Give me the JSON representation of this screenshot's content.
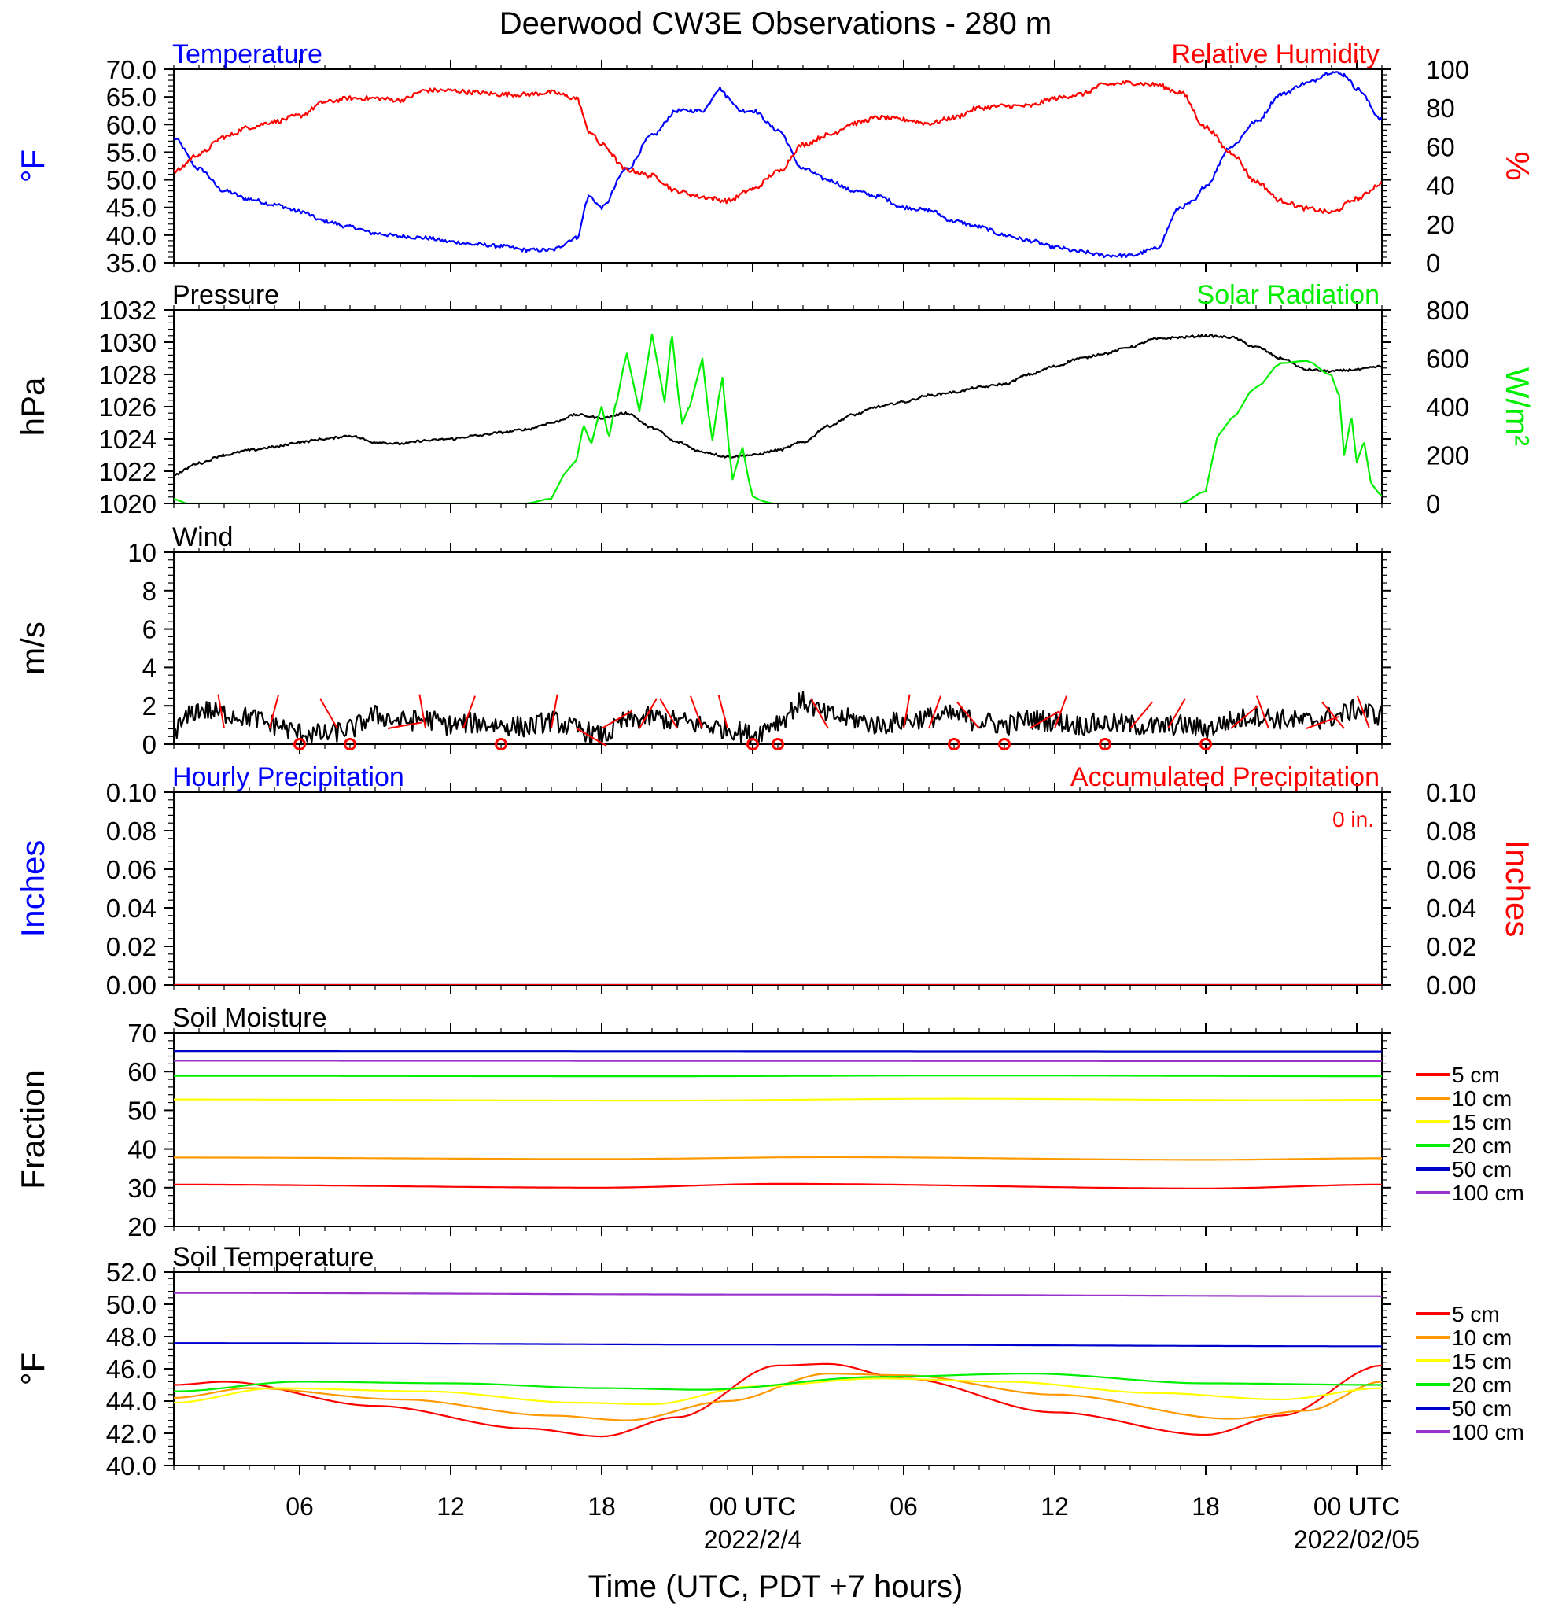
{
  "title": "Deerwood CW3E Observations - 280 m",
  "xaxis": {
    "label": "Time (UTC, PDT +7 hours)",
    "ticks": [
      "06",
      "12",
      "18",
      "00 UTC",
      "06",
      "12",
      "18",
      "00 UTC"
    ],
    "tick_hours": [
      6,
      12,
      18,
      24,
      30,
      36,
      42,
      48
    ],
    "dates": [
      "2022/2/4",
      "2022/02/05"
    ],
    "date_hours": [
      24,
      48
    ],
    "range_hours": [
      1,
      49
    ]
  },
  "colors": {
    "temperature": "#0000ff",
    "humidity": "#ff0000",
    "pressure": "#000000",
    "solar": "#00ee00",
    "wind": "#000000",
    "barb": "#ff0000",
    "precip_left": "#0000ff",
    "precip_right": "#ff0000",
    "depth_5cm": "#ff0000",
    "depth_10cm": "#ff9900",
    "depth_15cm": "#ffff00",
    "depth_20cm": "#00ee00",
    "depth_50cm": "#0000cc",
    "depth_100cm": "#9933cc"
  },
  "chart_data": [
    {
      "type": "line",
      "panel": "temp_rh",
      "title_left": "Temperature",
      "title_right": "Relative Humidity",
      "ylabel_left": "°F",
      "ylabel_right": "%",
      "ylim_left": [
        35,
        70
      ],
      "yticks_left": [
        "35.0",
        "40.0",
        "45.0",
        "50.0",
        "55.0",
        "60.0",
        "65.0",
        "70.0"
      ],
      "ylim_right": [
        0,
        100
      ],
      "yticks_right": [
        "0",
        "20",
        "40",
        "60",
        "80",
        "100"
      ],
      "series": [
        {
          "name": "Temperature",
          "axis": "left",
          "x": [
            1,
            2,
            3,
            4,
            5,
            6,
            7,
            8,
            9,
            10,
            11,
            12,
            13,
            14,
            15,
            16,
            17,
            17.5,
            18,
            19,
            20,
            21,
            22,
            22.7,
            23,
            23.5,
            24,
            25,
            26,
            27,
            28,
            29,
            30,
            31,
            32,
            33,
            34,
            35,
            36,
            37,
            38,
            39,
            40,
            41,
            41.5,
            42,
            43,
            44,
            45,
            46,
            47,
            47.5,
            48,
            49
          ],
          "values": [
            57.5,
            52,
            48,
            46.5,
            45.5,
            44.3,
            42.5,
            41.5,
            40.3,
            39.8,
            39.5,
            38.8,
            38.3,
            38,
            37.3,
            37.3,
            39.5,
            47,
            45,
            52,
            58,
            62.5,
            62.5,
            66.5,
            65,
            62.5,
            62.5,
            59,
            52,
            50,
            48,
            47,
            45,
            44.5,
            42.5,
            41.5,
            40,
            39,
            37.8,
            37,
            36.3,
            36.3,
            37.5,
            45,
            46,
            49,
            56,
            60.5,
            65.5,
            67.5,
            69.5,
            69,
            66.5,
            61
          ]
        },
        {
          "name": "Relative Humidity",
          "axis": "right",
          "x": [
            1,
            2,
            3,
            4,
            5,
            6,
            7,
            8,
            9,
            10,
            11,
            12,
            13,
            14,
            15,
            16,
            17,
            17.5,
            18,
            19,
            20,
            21,
            22,
            23,
            24,
            25,
            26,
            27,
            28,
            29,
            30,
            31,
            32,
            33,
            34,
            35,
            36,
            37,
            38,
            39,
            40,
            41,
            42,
            43,
            44,
            45,
            46,
            47,
            48,
            49
          ],
          "values": [
            47,
            56,
            65,
            70,
            73,
            76,
            83,
            85,
            85,
            84,
            89,
            89,
            88,
            87,
            87,
            88,
            85,
            68,
            61,
            48,
            45,
            37,
            34,
            32,
            38,
            47,
            61,
            66,
            72,
            75,
            74,
            72,
            75,
            80,
            81,
            81,
            85,
            87,
            92,
            93,
            92,
            88,
            70,
            57,
            42,
            32,
            28,
            26,
            33,
            41
          ]
        }
      ]
    },
    {
      "type": "line",
      "panel": "pressure_solar",
      "title_left": "Pressure",
      "title_right": "Solar Radiation",
      "ylabel_left": "hPa",
      "ylabel_right": "W/m²",
      "ylim_left": [
        1020,
        1032
      ],
      "yticks_left": [
        "1020",
        "1022",
        "1024",
        "1026",
        "1028",
        "1030",
        "1032"
      ],
      "ylim_right": [
        0,
        800
      ],
      "yticks_right": [
        "0",
        "200",
        "400",
        "600",
        "800"
      ],
      "series": [
        {
          "name": "Pressure",
          "axis": "left",
          "x": [
            1,
            2,
            3,
            4,
            5,
            6,
            7,
            8,
            9,
            10,
            11,
            12,
            13,
            14,
            15,
            16,
            17,
            18,
            19,
            20,
            21,
            22,
            23,
            24,
            25,
            26,
            27,
            28,
            29,
            30,
            31,
            32,
            33,
            34,
            35,
            36,
            37,
            38,
            39,
            40,
            41,
            42,
            43,
            44,
            45,
            46,
            47,
            48,
            49
          ],
          "values": [
            1021.8,
            1022.5,
            1023,
            1023.3,
            1023.5,
            1023.8,
            1024,
            1024.2,
            1023.8,
            1023.7,
            1023.9,
            1024,
            1024.2,
            1024.4,
            1024.6,
            1025,
            1025.5,
            1025.3,
            1025.6,
            1024.7,
            1023.8,
            1023.2,
            1022.9,
            1023,
            1023.3,
            1023.8,
            1024.8,
            1025.5,
            1026,
            1026.3,
            1026.7,
            1026.9,
            1027.2,
            1027.4,
            1028,
            1028.5,
            1029,
            1029.3,
            1029.7,
            1030.2,
            1030.3,
            1030.4,
            1030.3,
            1029.7,
            1029,
            1028.3,
            1028.2,
            1028.3,
            1028.5
          ]
        },
        {
          "name": "Solar Radiation",
          "axis": "right",
          "x": [
            1,
            1.5,
            15,
            16,
            16.5,
            17,
            17.3,
            17.6,
            18,
            18.3,
            18.6,
            19,
            19.5,
            20,
            20.5,
            20.8,
            21.2,
            21.5,
            22,
            22.4,
            22.8,
            23.2,
            23.6,
            24,
            24.4,
            24.8,
            25.5,
            26,
            41,
            42,
            42.2,
            42.5,
            43,
            44,
            45,
            46,
            47,
            47.3,
            47.5,
            47.8,
            48,
            48.3,
            48.6,
            49
          ],
          "values": [
            20,
            0,
            0,
            20,
            120,
            180,
            320,
            250,
            400,
            280,
            420,
            620,
            380,
            700,
            420,
            690,
            330,
            400,
            600,
            260,
            520,
            100,
            230,
            30,
            10,
            0,
            0,
            0,
            0,
            50,
            150,
            280,
            350,
            480,
            580,
            590,
            530,
            450,
            200,
            350,
            170,
            250,
            80,
            30
          ]
        }
      ]
    },
    {
      "type": "line",
      "panel": "wind",
      "title_left": "Wind",
      "ylabel_left": "m/s",
      "ylim_left": [
        0,
        10
      ],
      "yticks_left": [
        "0",
        "2",
        "4",
        "6",
        "8",
        "10"
      ],
      "series": [
        {
          "name": "Wind",
          "axis": "left",
          "x": [
            1,
            2,
            3,
            4,
            5,
            6,
            7,
            8,
            9,
            10,
            11,
            12,
            13,
            14,
            15,
            16,
            17,
            18,
            19,
            20,
            21,
            22,
            23,
            24,
            25,
            26,
            27,
            28,
            29,
            30,
            31,
            32,
            33,
            34,
            35,
            36,
            37,
            38,
            39,
            40,
            41,
            42,
            43,
            44,
            45,
            46,
            47,
            48,
            49
          ],
          "values": [
            0.8,
            1.8,
            1.6,
            1.4,
            1.0,
            0.6,
            0.5,
            0.8,
            1.5,
            1.2,
            1.3,
            1.0,
            1.1,
            1.0,
            0.9,
            1.2,
            0.8,
            0.4,
            1.2,
            1.4,
            1.2,
            1.0,
            0.8,
            0.5,
            1.2,
            2.2,
            1.5,
            1.3,
            1.0,
            1.2,
            1.4,
            1.5,
            1.2,
            1.0,
            1.3,
            1.2,
            1.0,
            1.1,
            1.0,
            0.9,
            1.0,
            0.8,
            1.2,
            1.5,
            1.3,
            1.2,
            1.4,
            1.8,
            1.5
          ]
        }
      ],
      "calm_hours": [
        6,
        8,
        14,
        24,
        25,
        32,
        34,
        38,
        42
      ],
      "barbs": [
        {
          "hour": 3,
          "dir_deg": 350
        },
        {
          "hour": 4.8,
          "dir_deg": 15
        },
        {
          "hour": 7.5,
          "dir_deg": 330
        },
        {
          "hour": 9.5,
          "dir_deg": 80
        },
        {
          "hour": 11,
          "dir_deg": 350
        },
        {
          "hour": 12.5,
          "dir_deg": 20
        },
        {
          "hour": 16,
          "dir_deg": 10
        },
        {
          "hour": 17,
          "dir_deg": 120
        },
        {
          "hour": 18,
          "dir_deg": 60
        },
        {
          "hour": 19.5,
          "dir_deg": 30
        },
        {
          "hour": 21,
          "dir_deg": 330
        },
        {
          "hour": 22,
          "dir_deg": 340
        },
        {
          "hour": 23,
          "dir_deg": 345
        },
        {
          "hour": 27,
          "dir_deg": 330
        },
        {
          "hour": 30,
          "dir_deg": 10
        },
        {
          "hour": 31,
          "dir_deg": 20
        },
        {
          "hour": 33,
          "dir_deg": 320
        },
        {
          "hour": 35,
          "dir_deg": 60
        },
        {
          "hour": 36,
          "dir_deg": 20
        },
        {
          "hour": 39,
          "dir_deg": 40
        },
        {
          "hour": 40.5,
          "dir_deg": 30
        },
        {
          "hour": 43,
          "dir_deg": 50
        },
        {
          "hour": 44.5,
          "dir_deg": 340
        },
        {
          "hour": 46,
          "dir_deg": 70
        },
        {
          "hour": 47.5,
          "dir_deg": 320
        },
        {
          "hour": 48.5,
          "dir_deg": 340
        }
      ]
    },
    {
      "type": "line",
      "panel": "precip",
      "title_left": "Hourly Precipitation",
      "title_right": "Accumulated Precipitation",
      "total_label": "0 in.",
      "ylabel_left": "Inches",
      "ylabel_right": "Inches",
      "ylim_left": [
        0,
        0.1
      ],
      "yticks_left": [
        "0.00",
        "0.02",
        "0.04",
        "0.06",
        "0.08",
        "0.10"
      ],
      "ylim_right": [
        0,
        0.1
      ],
      "yticks_right": [
        "0.00",
        "0.02",
        "0.04",
        "0.06",
        "0.08",
        "0.10"
      ],
      "series": [
        {
          "name": "Hourly Precipitation",
          "axis": "left",
          "x": [
            1,
            49
          ],
          "values": [
            0,
            0
          ]
        },
        {
          "name": "Accumulated Precipitation",
          "axis": "right",
          "x": [
            1,
            49
          ],
          "values": [
            0,
            0
          ]
        }
      ]
    },
    {
      "type": "line",
      "panel": "soil_moisture",
      "title_left": "Soil Moisture",
      "ylabel_left": "Fraction",
      "ylim_left": [
        20,
        70
      ],
      "yticks_left": [
        "20",
        "30",
        "40",
        "50",
        "60",
        "70"
      ],
      "series": [
        {
          "name": "5 cm",
          "x": [
            1,
            18,
            25,
            42,
            49
          ],
          "values": [
            30.8,
            30.0,
            31.0,
            29.8,
            30.8
          ]
        },
        {
          "name": "10 cm",
          "x": [
            1,
            18,
            27,
            42,
            49
          ],
          "values": [
            37.8,
            37.4,
            37.9,
            37.2,
            37.6
          ]
        },
        {
          "name": "15 cm",
          "x": [
            1,
            20,
            32,
            45,
            49
          ],
          "values": [
            52.8,
            52.5,
            53.0,
            52.6,
            52.7
          ]
        },
        {
          "name": "20 cm",
          "x": [
            1,
            20,
            33,
            49
          ],
          "values": [
            58.9,
            58.8,
            59.0,
            58.8
          ]
        },
        {
          "name": "50 cm",
          "x": [
            1,
            49
          ],
          "values": [
            65.3,
            65.2
          ]
        },
        {
          "name": "100 cm",
          "x": [
            1,
            49
          ],
          "values": [
            62.8,
            62.7
          ]
        }
      ]
    },
    {
      "type": "line",
      "panel": "soil_temp",
      "title_left": "Soil Temperature",
      "ylabel_left": "°F",
      "ylim_left": [
        40,
        52
      ],
      "yticks_left": [
        "40.0",
        "42.0",
        "44.0",
        "46.0",
        "48.0",
        "50.0",
        "52.0"
      ],
      "series": [
        {
          "name": "5 cm",
          "x": [
            1,
            3,
            9,
            15,
            18,
            21,
            25,
            27,
            30,
            36,
            42,
            45,
            49
          ],
          "values": [
            45.0,
            45.2,
            43.7,
            42.3,
            41.8,
            43.0,
            46.2,
            46.3,
            45.4,
            43.3,
            41.9,
            43.1,
            46.2
          ]
        },
        {
          "name": "10 cm",
          "x": [
            1,
            4,
            10,
            16,
            19,
            23,
            27,
            30,
            36,
            43,
            46,
            49
          ],
          "values": [
            44.2,
            44.8,
            44.1,
            43.1,
            42.8,
            44.0,
            45.7,
            45.6,
            44.4,
            42.9,
            43.4,
            45.2
          ]
        },
        {
          "name": "15 cm",
          "x": [
            1,
            5,
            11,
            17,
            20,
            24,
            29,
            34,
            40,
            45,
            49
          ],
          "values": [
            43.9,
            44.8,
            44.6,
            43.9,
            43.8,
            44.9,
            45.4,
            45.2,
            44.5,
            44.1,
            44.8
          ]
        },
        {
          "name": "20 cm",
          "x": [
            1,
            6,
            12,
            18,
            22,
            29,
            35,
            42,
            49
          ],
          "values": [
            44.6,
            45.2,
            45.1,
            44.8,
            44.7,
            45.5,
            45.7,
            45.1,
            45.0
          ]
        },
        {
          "name": "50 cm",
          "x": [
            1,
            25,
            49
          ],
          "values": [
            47.6,
            47.5,
            47.4
          ]
        },
        {
          "name": "100 cm",
          "x": [
            1,
            25,
            49
          ],
          "values": [
            50.7,
            50.6,
            50.5
          ]
        }
      ]
    }
  ],
  "legend_labels": [
    "5 cm",
    "10 cm",
    "15 cm",
    "20 cm",
    "50 cm",
    "100 cm"
  ]
}
